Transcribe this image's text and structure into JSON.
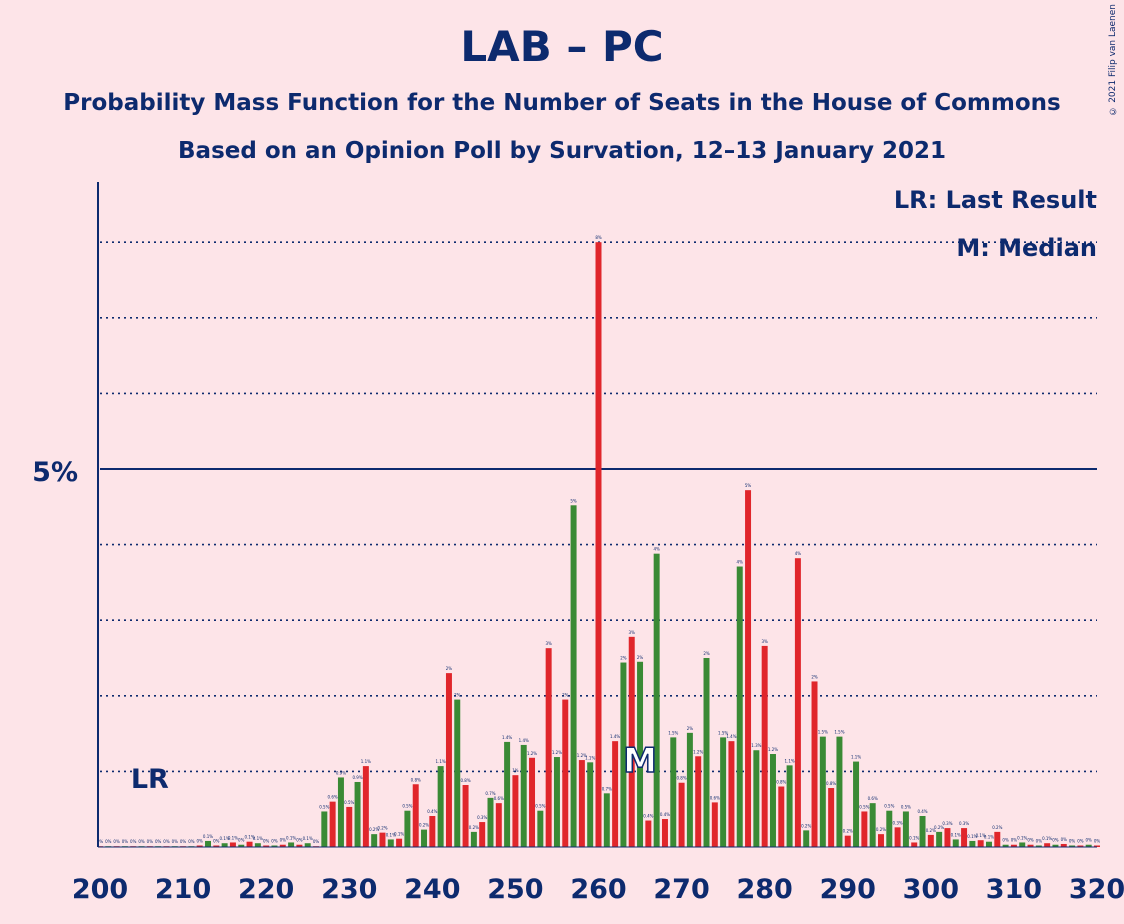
{
  "title": "LAB – PC",
  "subtitle1": "Probability Mass Function for the Number of Seats in the House of Commons",
  "subtitle2": "Based on an Opinion Poll by Survation, 12–13 January 2021",
  "legend": {
    "lr": "LR: Last Result",
    "m": "M: Median"
  },
  "copyright": "© 2021 Filip van Laenen",
  "markers": {
    "lr_label": "LR",
    "median_label": "M"
  },
  "colors": {
    "background": "#fde4e8",
    "axis": "#0d2a6e",
    "red": "#e0262b",
    "green": "#3a8a35"
  },
  "chart_data": {
    "type": "bar",
    "xlabel": "",
    "ylabel": "",
    "x_ticks": [
      200,
      210,
      220,
      230,
      240,
      250,
      260,
      270,
      280,
      290,
      300,
      310,
      320
    ],
    "y_ticks": [
      {
        "value": 5,
        "label": "5%"
      }
    ],
    "xlim": [
      200,
      320
    ],
    "ylim": [
      0,
      9
    ],
    "gridlines": [
      1,
      2,
      3,
      4,
      6,
      7,
      8
    ],
    "last_result_seat": 206,
    "median_seat": 265,
    "x": [
      200,
      201,
      202,
      203,
      204,
      205,
      206,
      207,
      208,
      209,
      210,
      211,
      212,
      213,
      214,
      215,
      216,
      217,
      218,
      219,
      220,
      221,
      222,
      223,
      224,
      225,
      226,
      227,
      228,
      229,
      230,
      231,
      232,
      233,
      234,
      235,
      236,
      237,
      238,
      239,
      240,
      241,
      242,
      243,
      244,
      245,
      246,
      247,
      248,
      249,
      250,
      251,
      252,
      253,
      254,
      255,
      256,
      257,
      258,
      259,
      260,
      261,
      262,
      263,
      264,
      265,
      266,
      267,
      268,
      269,
      270,
      271,
      272,
      273,
      274,
      275,
      276,
      277,
      278,
      279,
      280,
      281,
      282,
      283,
      284,
      285,
      286,
      287,
      288,
      289,
      290,
      291,
      292,
      293,
      294,
      295,
      296,
      297,
      298,
      299,
      300,
      301,
      302,
      303,
      304,
      305,
      306,
      307,
      308,
      309,
      310,
      311,
      312,
      313,
      314,
      315,
      316,
      317,
      318,
      319,
      320
    ],
    "values": [
      0,
      0,
      0,
      0,
      0,
      0,
      0,
      0,
      0,
      0,
      0,
      0,
      0.02,
      0.08,
      0.02,
      0.05,
      0.06,
      0.03,
      0.07,
      0.05,
      0.02,
      0.02,
      0.03,
      0.06,
      0.03,
      0.05,
      0.01,
      0.47,
      0.6,
      0.92,
      0.53,
      0.86,
      1.07,
      0.17,
      0.19,
      0.1,
      0.11,
      0.48,
      0.83,
      0.23,
      0.41,
      1.07,
      2.3,
      1.95,
      0.82,
      0.2,
      0.33,
      0.65,
      0.58,
      1.39,
      0.95,
      1.35,
      1.18,
      0.48,
      2.63,
      1.19,
      1.95,
      4.52,
      1.15,
      1.12,
      8.0,
      0.71,
      1.4,
      2.44,
      2.78,
      2.45,
      0.35,
      3.88,
      0.37,
      1.45,
      0.85,
      1.51,
      1.2,
      2.5,
      0.59,
      1.45,
      1.4,
      3.71,
      4.72,
      1.28,
      2.66,
      1.23,
      0.8,
      1.08,
      3.82,
      0.22,
      2.19,
      1.46,
      0.78,
      1.46,
      0.15,
      1.13,
      0.47,
      0.58,
      0.17,
      0.48,
      0.26,
      0.47,
      0.06,
      0.41,
      0.16,
      0.2,
      0.25,
      0.1,
      0.25,
      0.08,
      0.09,
      0.07,
      0.2,
      0.03,
      0.03,
      0.06,
      0.03,
      0.02,
      0.05,
      0.03,
      0.04,
      0.02,
      0.02,
      0.03,
      0.02
    ],
    "value_labels": [
      "0%",
      "0%",
      "0%",
      "0%",
      "0%",
      "0%",
      "0%",
      "0%",
      "0%",
      "0%",
      "0%",
      "0%",
      "0%",
      "0.1%",
      "0%",
      "0.1%",
      "0.1%",
      "0%",
      "0.1%",
      "0.1%",
      "0%",
      "0%",
      "0%",
      "0.1%",
      "0%",
      "0.1%",
      "0%",
      "0.5%",
      "0.6%",
      "0.9%",
      "0.5%",
      "0.9%",
      "1.1%",
      "0.2%",
      "0.2%",
      "0.1%",
      "0.1%",
      "0.5%",
      "0.8%",
      "0.2%",
      "0.4%",
      "1.1%",
      "2%",
      "2%",
      "0.8%",
      "0.2%",
      "0.3%",
      "0.7%",
      "0.6%",
      "1.4%",
      "1%",
      "1.4%",
      "1.2%",
      "0.5%",
      "3%",
      "1.2%",
      "2%",
      "5%",
      "1.2%",
      "1.1%",
      "8%",
      "0.7%",
      "1.4%",
      "2%",
      "3%",
      "2%",
      "0.4%",
      "4%",
      "0.4%",
      "1.5%",
      "0.8%",
      "2%",
      "1.2%",
      "2%",
      "0.6%",
      "1.5%",
      "1.4%",
      "4%",
      "5%",
      "1.3%",
      "3%",
      "1.2%",
      "0.8%",
      "1.1%",
      "4%",
      "0.2%",
      "2%",
      "1.5%",
      "0.8%",
      "1.5%",
      "0.2%",
      "1.1%",
      "0.5%",
      "0.6%",
      "0.2%",
      "0.5%",
      "0.3%",
      "0.5%",
      "0.1%",
      "0.4%",
      "0.2%",
      "0.2%",
      "0.3%",
      "0.1%",
      "0.3%",
      "0.1%",
      "0.1%",
      "0.1%",
      "0.2%",
      "0%",
      "0%",
      "0.1%",
      "0%",
      "0%",
      "0.1%",
      "0%",
      "0%",
      "0%",
      "0%",
      "0%",
      "0%"
    ]
  }
}
